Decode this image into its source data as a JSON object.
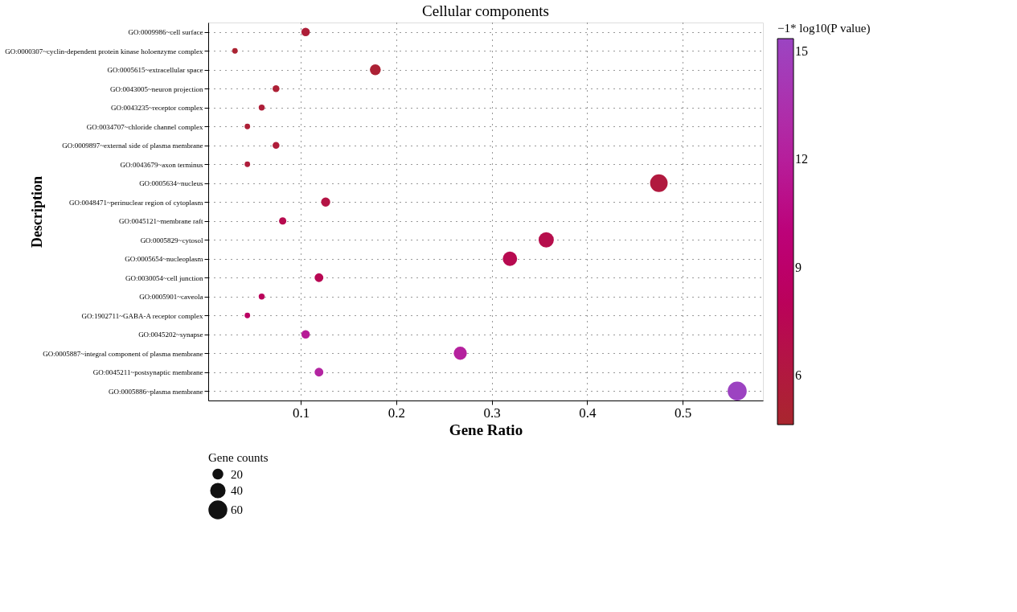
{
  "chart_data": {
    "type": "bubble",
    "title": "Cellular components",
    "xlabel": "Gene Ratio",
    "ylabel": "Description",
    "clabel": "−1* log10(P value)",
    "legend_title": "Gene counts",
    "categories": [
      "GO:0009986~cell surface",
      "GO:0000307~cyclin-dependent protein kinase holoenzyme complex",
      "GO:0005615~extracellular space",
      "GO:0043005~neuron projection",
      "GO:0043235~receptor complex",
      "GO:0034707~chloride channel complex",
      "GO:0009897~external side of plasma membrane",
      "GO:0043679~axon terminus",
      "GO:0005634~nucleus",
      "GO:0048471~perinuclear region of cytoplasm",
      "GO:0045121~membrane raft",
      "GO:0005829~cytosol",
      "GO:0005654~nucleoplasm",
      "GO:0030054~cell junction",
      "GO:0005901~caveola",
      "GO:1902711~GABA-A receptor complex",
      "GO:0045202~synapse",
      "GO:0005887~integral component of plasma membrane",
      "GO:0045211~postsynaptic membrane",
      "GO:0005886~plasma membrane"
    ],
    "values": [
      0.105,
      0.031,
      0.178,
      0.074,
      0.059,
      0.044,
      0.074,
      0.044,
      0.475,
      0.126,
      0.081,
      0.357,
      0.319,
      0.119,
      0.059,
      0.044,
      0.105,
      0.267,
      0.119,
      0.557
    ],
    "sizes": [
      12,
      5,
      20,
      8,
      6,
      5,
      8,
      5,
      52,
      14,
      9,
      39,
      35,
      13,
      6,
      5,
      12,
      29,
      13,
      61
    ],
    "size_legend": [
      20,
      40,
      60
    ],
    "cvalues": [
      5.5,
      5.0,
      5.2,
      5.3,
      5.5,
      5.4,
      5.6,
      5.7,
      6.0,
      6.5,
      7.2,
      7.0,
      7.3,
      7.5,
      8.0,
      8.5,
      11.8,
      12.2,
      12.5,
      15.3
    ],
    "clim": [
      4.64,
      15.36
    ],
    "cticks": [
      6,
      9,
      12,
      15
    ],
    "xlim": [
      0.003,
      0.584
    ],
    "xticks": [
      0.1,
      0.2,
      0.3,
      0.4,
      0.5
    ],
    "grid": true,
    "marker": "circle",
    "orientation": "horizontal"
  }
}
